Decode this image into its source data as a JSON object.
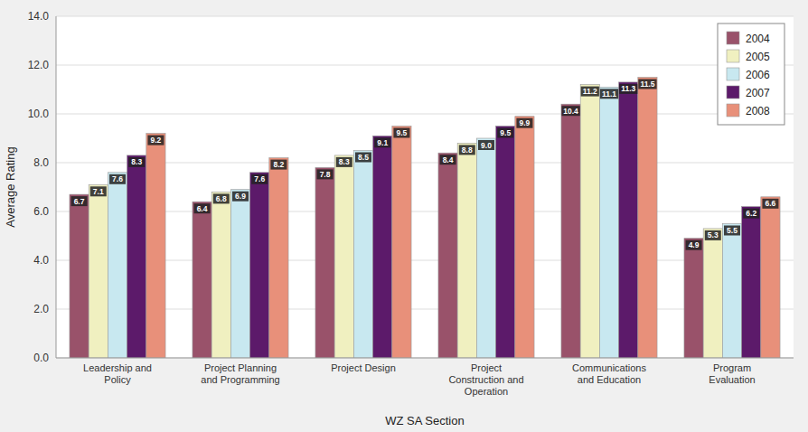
{
  "chart_data": {
    "type": "bar",
    "categories": [
      "Leadership and\nPolicy",
      "Project Planning\nand Programming",
      "Project Design",
      "Project\nConstruction and\nOperation",
      "Communications\nand Education",
      "Program\nEvaluation"
    ],
    "series": [
      {
        "name": "2004",
        "color": "#99526A",
        "values": [
          6.7,
          6.4,
          7.8,
          8.4,
          10.4,
          4.9
        ]
      },
      {
        "name": "2005",
        "color": "#F0F0C0",
        "values": [
          7.1,
          6.8,
          8.3,
          8.8,
          11.2,
          5.3
        ]
      },
      {
        "name": "2006",
        "color": "#C8E8F0",
        "values": [
          7.6,
          6.9,
          8.5,
          9.0,
          11.1,
          5.5
        ],
        "value_labels": [
          "7.6",
          "6.9",
          "8.5",
          "9.0",
          "11.1",
          "5.5"
        ]
      },
      {
        "name": "2007",
        "color": "#5C1A6A",
        "values": [
          8.3,
          7.6,
          9.1,
          9.5,
          11.3,
          6.2
        ]
      },
      {
        "name": "2008",
        "color": "#E8907A",
        "values": [
          9.2,
          8.2,
          9.5,
          9.9,
          11.5,
          6.6
        ]
      }
    ],
    "xlabel": "WZ SA Section",
    "ylabel": "Average Rating",
    "ylim": [
      0,
      14.0
    ],
    "yticks": [
      {
        "value": 0.0,
        "label": "0.0"
      },
      {
        "value": 2.0,
        "label": "2.0"
      },
      {
        "value": 4.0,
        "label": "4.0"
      },
      {
        "value": 6.0,
        "label": "6.0"
      },
      {
        "value": 8.0,
        "label": "8.0"
      },
      {
        "value": 10.0,
        "label": "10.0"
      },
      {
        "value": 12.0,
        "label": "12.0"
      },
      {
        "value": 14.0,
        "label": "14.0"
      }
    ],
    "grid": true,
    "legend": "upper right",
    "data_labels": true
  }
}
